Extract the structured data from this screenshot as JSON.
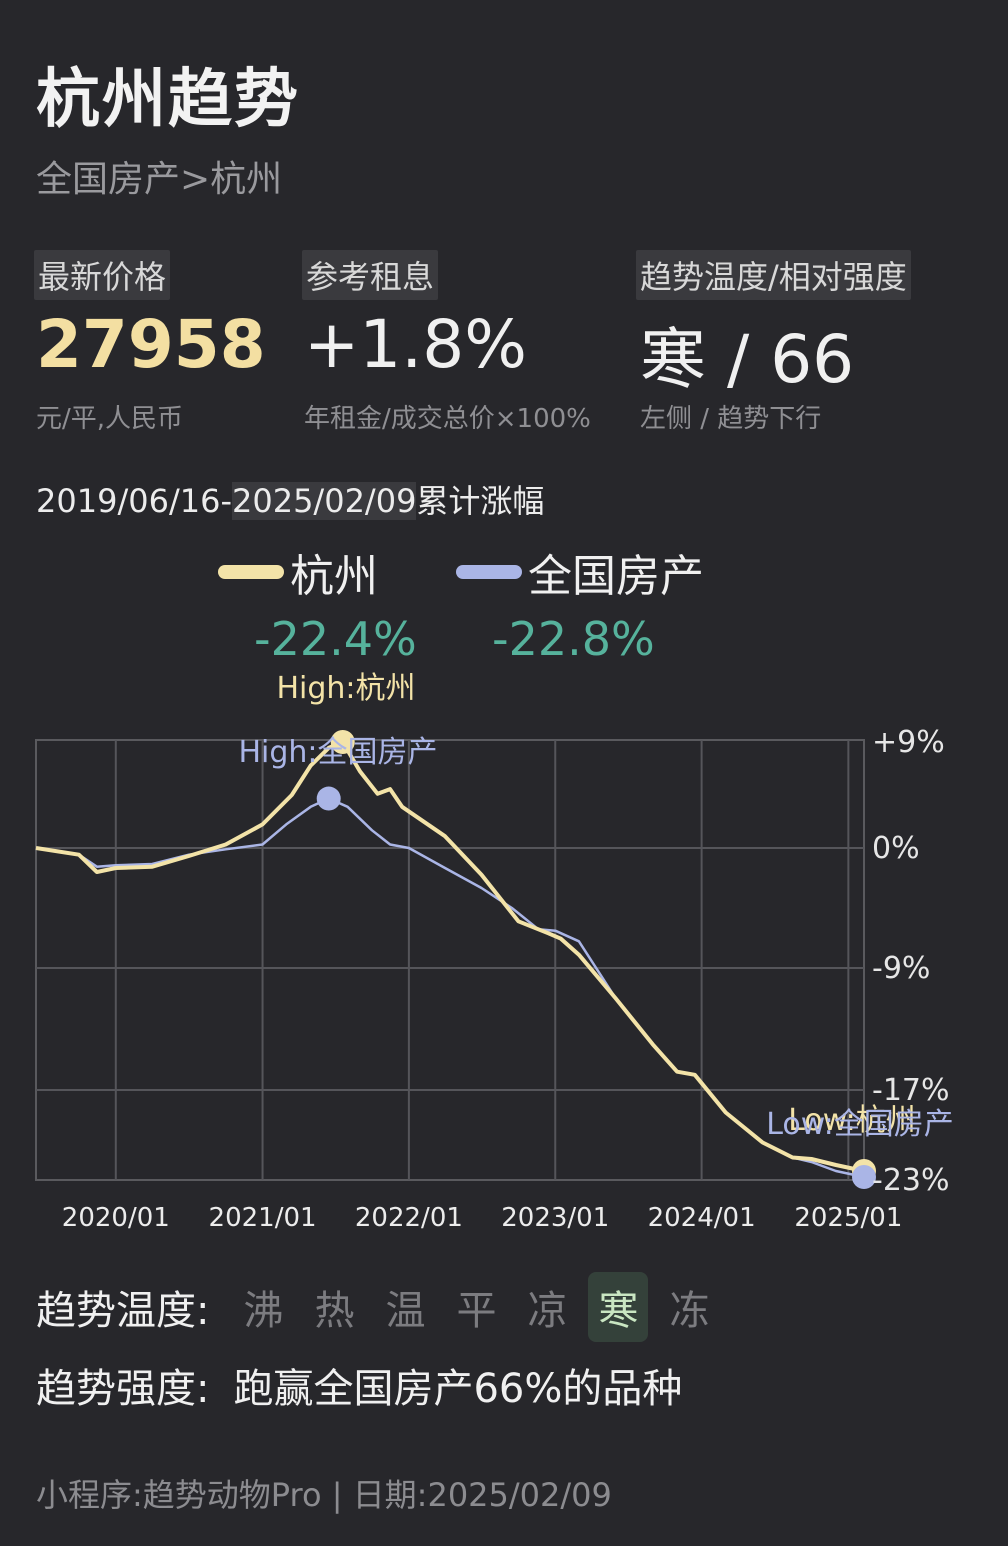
{
  "header": {
    "title": "杭州趋势",
    "breadcrumb": "全国房产>杭州"
  },
  "stats": {
    "price": {
      "label": "最新价格",
      "value": "27958",
      "sub": "元/平,人民币"
    },
    "rent": {
      "label": "参考租息",
      "value": "+1.8%",
      "sub": "年租金/成交总价×100%"
    },
    "trend": {
      "label": "趋势温度/相对强度",
      "value": "寒 / 66",
      "sub": "左侧 / 趋势下行"
    }
  },
  "range": {
    "start": "2019/06/16-",
    "end": "2025/02/09",
    "suffix": "累计涨幅"
  },
  "legend": [
    {
      "name": "杭州",
      "pct": "-22.4%",
      "color": "#f3e3a8"
    },
    {
      "name": "全国房产",
      "pct": "-22.8%",
      "color": "#aab5e6"
    }
  ],
  "chart_data": {
    "type": "line",
    "x_ticks": [
      "2020/01",
      "2021/01",
      "2022/01",
      "2023/01",
      "2024/01",
      "2025/01"
    ],
    "y_ticks": [
      "+9%",
      "0%",
      "-9%",
      "-17%",
      "-23%"
    ],
    "y_tick_values": [
      9,
      0,
      -9,
      -17,
      -23
    ],
    "ylim": [
      -23,
      9
    ],
    "series": [
      {
        "name": "杭州",
        "color": "#f3e3a8",
        "points": [
          [
            "2019/06/16",
            0
          ],
          [
            "2019/10/01",
            -0.5
          ],
          [
            "2019/11/15",
            -1.8
          ],
          [
            "2020/01/01",
            -1.5
          ],
          [
            "2020/04/01",
            -1.4
          ],
          [
            "2020/07/01",
            -0.6
          ],
          [
            "2020/10/01",
            0.3
          ],
          [
            "2021/01/01",
            2.0
          ],
          [
            "2021/03/15",
            4.5
          ],
          [
            "2021/05/01",
            7.0
          ],
          [
            "2021/06/15",
            8.5
          ],
          [
            "2021/07/20",
            9.0
          ],
          [
            "2021/09/01",
            6.5
          ],
          [
            "2021/10/15",
            4.6
          ],
          [
            "2021/11/15",
            5.0
          ],
          [
            "2021/12/15",
            3.5
          ],
          [
            "2022/04/01",
            1.0
          ],
          [
            "2022/07/01",
            -2.0
          ],
          [
            "2022/10/01",
            -5.5
          ],
          [
            "2022/12/15",
            -6.4
          ],
          [
            "2023/01/15",
            -6.8
          ],
          [
            "2023/03/01",
            -8.0
          ],
          [
            "2023/06/01",
            -11.0
          ],
          [
            "2023/09/01",
            -14.0
          ],
          [
            "2023/11/01",
            -15.8
          ],
          [
            "2023/12/15",
            -16.0
          ],
          [
            "2024/03/01",
            -18.5
          ],
          [
            "2024/06/01",
            -20.5
          ],
          [
            "2024/08/15",
            -21.5
          ],
          [
            "2024/10/01",
            -21.6
          ],
          [
            "2024/12/01",
            -22.0
          ],
          [
            "2025/02/09",
            -22.4
          ]
        ]
      },
      {
        "name": "全国房产",
        "color": "#aab5e6",
        "points": [
          [
            "2019/06/16",
            0
          ],
          [
            "2019/10/01",
            -0.5
          ],
          [
            "2019/11/15",
            -1.4
          ],
          [
            "2020/01/01",
            -1.3
          ],
          [
            "2020/04/01",
            -1.2
          ],
          [
            "2020/07/01",
            -0.5
          ],
          [
            "2020/10/01",
            -0.1
          ],
          [
            "2021/01/01",
            0.3
          ],
          [
            "2021/03/01",
            2.0
          ],
          [
            "2021/05/01",
            3.5
          ],
          [
            "2021/06/15",
            4.2
          ],
          [
            "2021/08/01",
            3.5
          ],
          [
            "2021/10/01",
            1.5
          ],
          [
            "2021/11/15",
            0.3
          ],
          [
            "2022/01/01",
            0.0
          ],
          [
            "2022/04/01",
            -1.5
          ],
          [
            "2022/07/01",
            -3.0
          ],
          [
            "2022/09/15",
            -4.5
          ],
          [
            "2022/11/20",
            -6.1
          ],
          [
            "2023/01/01",
            -6.2
          ],
          [
            "2023/03/01",
            -7.0
          ],
          [
            "2023/06/01",
            -11.0
          ],
          [
            "2023/09/01",
            -14.0
          ],
          [
            "2023/11/01",
            -15.8
          ],
          [
            "2023/12/15",
            -16.0
          ],
          [
            "2024/03/01",
            -18.5
          ],
          [
            "2024/06/01",
            -20.5
          ],
          [
            "2024/08/15",
            -21.5
          ],
          [
            "2024/10/01",
            -21.8
          ],
          [
            "2024/12/01",
            -22.4
          ],
          [
            "2025/02/09",
            -22.8
          ]
        ]
      }
    ],
    "annotations": [
      {
        "text": "High:杭州",
        "series": "杭州",
        "x": "2021/07/20",
        "y": 9.0,
        "color": "#f3e3a8",
        "kind": "high"
      },
      {
        "text": "High:全国房产",
        "series": "全国房产",
        "x": "2021/06/15",
        "y": 4.2,
        "color": "#aab5e6",
        "kind": "high"
      },
      {
        "text": "Low:杭州",
        "series": "杭州",
        "x": "2025/02/09",
        "y": -22.4,
        "color": "#f3e3a8",
        "kind": "low"
      },
      {
        "text": "Low:全国房产",
        "series": "全国房产",
        "x": "2025/02/09",
        "y": -22.8,
        "color": "#aab5e6",
        "kind": "low"
      }
    ]
  },
  "temperature": {
    "label": "趋势温度:",
    "levels": [
      "沸",
      "热",
      "温",
      "平",
      "凉",
      "寒",
      "冻"
    ],
    "active": "寒"
  },
  "strength": {
    "label": "趋势强度:",
    "text": "跑赢全国房产66%的品种"
  },
  "footer": {
    "text": "小程序:趋势动物Pro | 日期:2025/02/09"
  }
}
